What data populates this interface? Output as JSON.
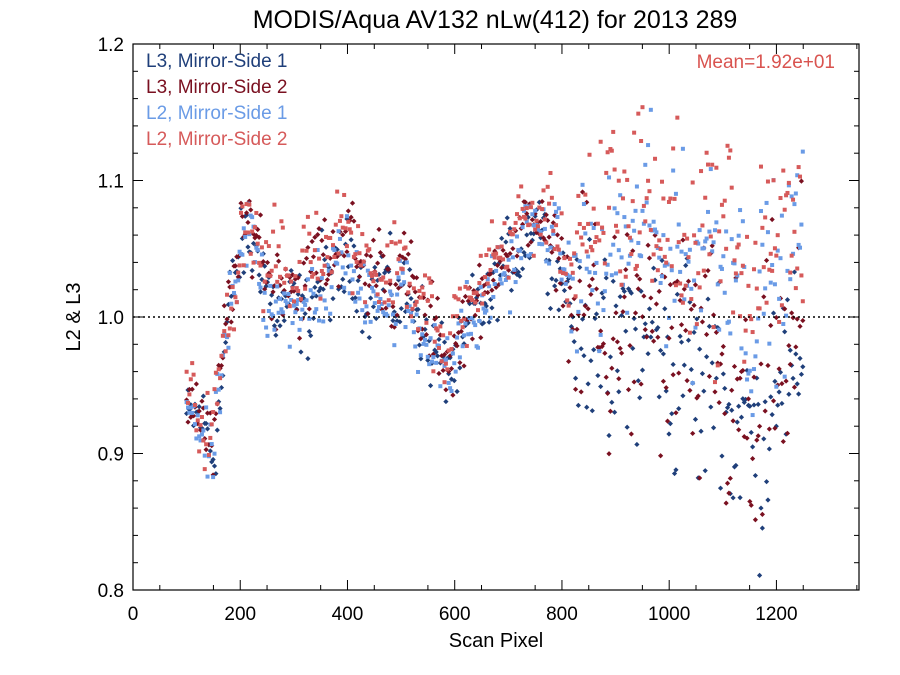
{
  "chart_data": {
    "type": "scatter",
    "title": "MODIS/Aqua AV132 nLw(412) for 2013 289",
    "xlabel": "Scan Pixel",
    "ylabel": "L2 & L3",
    "xlim": [
      0,
      1354
    ],
    "ylim": [
      0.8,
      1.2
    ],
    "xticks": [
      "0",
      "200",
      "400",
      "600",
      "800",
      "1000",
      "1200"
    ],
    "yticks": [
      "0.8",
      "0.9",
      "1.0",
      "1.1",
      "1.2"
    ],
    "reference_line": 1.0,
    "annotation": "Mean=1.92e+01",
    "annotation_color": "#d9534f",
    "legend_position": "top-left",
    "series": [
      {
        "name": "L3, Mirror-Side 1",
        "color": "#1f3f7a",
        "marker": "diamond",
        "profile": [
          [
            100,
            0.935
          ],
          [
            150,
            0.905
          ],
          [
            180,
            1.0
          ],
          [
            210,
            1.07
          ],
          [
            250,
            1.02
          ],
          [
            300,
            1.0
          ],
          [
            350,
            1.02
          ],
          [
            390,
            1.04
          ],
          [
            450,
            1.02
          ],
          [
            500,
            1.02
          ],
          [
            550,
            0.99
          ],
          [
            580,
            0.955
          ],
          [
            640,
            1.0
          ],
          [
            700,
            1.04
          ],
          [
            760,
            1.07
          ],
          [
            820,
            1.0
          ],
          [
            900,
            0.97
          ],
          [
            950,
            0.99
          ],
          [
            1000,
            0.97
          ],
          [
            1050,
            0.96
          ],
          [
            1100,
            0.95
          ],
          [
            1150,
            0.9
          ],
          [
            1200,
            0.95
          ],
          [
            1250,
            0.98
          ]
        ],
        "spread": [
          [
            100,
            0.02
          ],
          [
            200,
            0.025
          ],
          [
            560,
            0.025
          ],
          [
            700,
            0.02
          ],
          [
            800,
            0.02
          ],
          [
            850,
            0.06
          ],
          [
            1250,
            0.06
          ]
        ]
      },
      {
        "name": "L3, Mirror-Side 2",
        "color": "#7a1020",
        "marker": "diamond",
        "profile": [
          [
            100,
            0.94
          ],
          [
            150,
            0.91
          ],
          [
            180,
            1.01
          ],
          [
            210,
            1.075
          ],
          [
            250,
            1.035
          ],
          [
            300,
            1.02
          ],
          [
            350,
            1.04
          ],
          [
            390,
            1.06
          ],
          [
            450,
            1.03
          ],
          [
            500,
            1.03
          ],
          [
            550,
            1.0
          ],
          [
            580,
            0.965
          ],
          [
            640,
            1.01
          ],
          [
            700,
            1.05
          ],
          [
            760,
            1.075
          ],
          [
            820,
            1.01
          ],
          [
            900,
            0.98
          ],
          [
            950,
            1.0
          ],
          [
            1000,
            0.98
          ],
          [
            1050,
            0.97
          ],
          [
            1100,
            0.96
          ],
          [
            1150,
            0.9
          ],
          [
            1200,
            0.96
          ],
          [
            1250,
            0.985
          ]
        ],
        "spread": [
          [
            100,
            0.02
          ],
          [
            200,
            0.025
          ],
          [
            560,
            0.025
          ],
          [
            700,
            0.02
          ],
          [
            800,
            0.02
          ],
          [
            850,
            0.07
          ],
          [
            1250,
            0.07
          ]
        ]
      },
      {
        "name": "L2, Mirror-Side 1",
        "color": "#6a9be6",
        "marker": "square",
        "profile": [
          [
            100,
            0.935
          ],
          [
            150,
            0.9
          ],
          [
            180,
            1.0
          ],
          [
            210,
            1.06
          ],
          [
            250,
            1.02
          ],
          [
            300,
            1.0
          ],
          [
            350,
            1.02
          ],
          [
            390,
            1.04
          ],
          [
            450,
            1.015
          ],
          [
            500,
            1.01
          ],
          [
            550,
            0.985
          ],
          [
            580,
            0.96
          ],
          [
            640,
            1.0
          ],
          [
            700,
            1.04
          ],
          [
            760,
            1.07
          ],
          [
            820,
            1.03
          ],
          [
            900,
            1.04
          ],
          [
            950,
            1.07
          ],
          [
            1000,
            1.05
          ],
          [
            1050,
            1.04
          ],
          [
            1100,
            1.06
          ],
          [
            1150,
            1.0
          ],
          [
            1200,
            1.03
          ],
          [
            1250,
            1.06
          ]
        ],
        "spread": [
          [
            100,
            0.02
          ],
          [
            200,
            0.025
          ],
          [
            560,
            0.025
          ],
          [
            700,
            0.02
          ],
          [
            800,
            0.02
          ],
          [
            850,
            0.05
          ],
          [
            1250,
            0.05
          ]
        ]
      },
      {
        "name": "L2, Mirror-Side 2",
        "color": "#d65a5a",
        "marker": "square",
        "profile": [
          [
            100,
            0.945
          ],
          [
            150,
            0.915
          ],
          [
            180,
            1.01
          ],
          [
            210,
            1.07
          ],
          [
            250,
            1.04
          ],
          [
            300,
            1.03
          ],
          [
            350,
            1.05
          ],
          [
            390,
            1.07
          ],
          [
            450,
            1.03
          ],
          [
            500,
            1.04
          ],
          [
            550,
            1.0
          ],
          [
            580,
            0.975
          ],
          [
            640,
            1.02
          ],
          [
            700,
            1.06
          ],
          [
            760,
            1.08
          ],
          [
            820,
            1.04
          ],
          [
            900,
            1.08
          ],
          [
            950,
            1.09
          ],
          [
            1000,
            1.06
          ],
          [
            1050,
            1.05
          ],
          [
            1100,
            1.07
          ],
          [
            1150,
            1.02
          ],
          [
            1200,
            1.05
          ],
          [
            1250,
            1.08
          ]
        ],
        "spread": [
          [
            100,
            0.02
          ],
          [
            200,
            0.025
          ],
          [
            560,
            0.025
          ],
          [
            700,
            0.02
          ],
          [
            800,
            0.02
          ],
          [
            850,
            0.06
          ],
          [
            1250,
            0.06
          ]
        ]
      }
    ]
  }
}
